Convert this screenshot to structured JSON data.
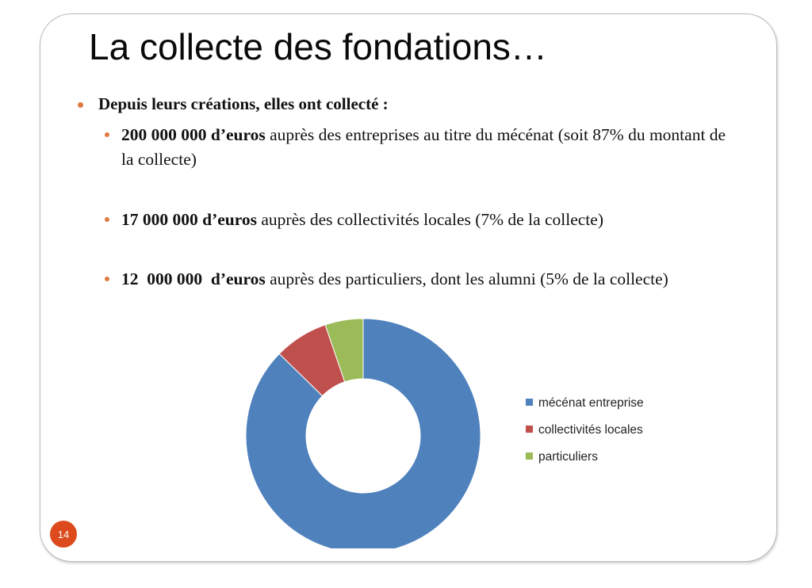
{
  "slide": {
    "title": "La collecte des fondations…",
    "page_number": "14"
  },
  "main_bullet": "Depuis leurs créations, elles ont collecté :",
  "sub_bullets": [
    {
      "amount": "200 000 000 d’euros",
      "text": " auprès des entreprises au titre du mécénat (soit 87% du montant de la collecte)"
    },
    {
      "amount": "17 000 000 d’euros",
      "text": " auprès des collectivités locales (7% de la collecte)"
    },
    {
      "amount": "12  000 000  d’euros",
      "text": " auprès des particuliers, dont les alumni (5% de la collecte)"
    }
  ],
  "colors": {
    "bullet": "#e07a42",
    "badge": "#dd4a1e",
    "series": [
      "#4f81bd",
      "#c0504d",
      "#9bbb59"
    ]
  },
  "chart_data": {
    "type": "pie",
    "donut": true,
    "categories": [
      "mécénat entreprise",
      "collectivités locales",
      "particuliers"
    ],
    "values": [
      200000000,
      17000000,
      12000000
    ],
    "legend_position": "right"
  }
}
